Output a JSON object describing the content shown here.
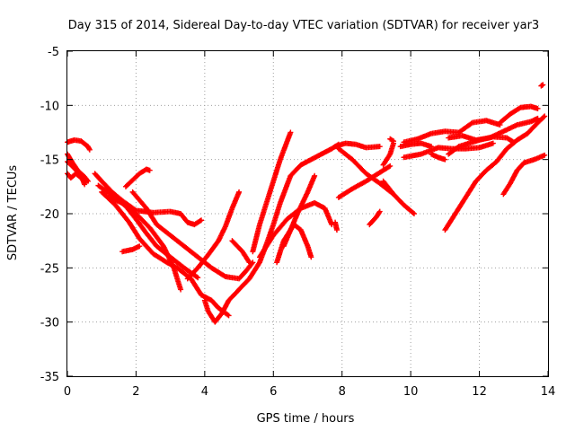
{
  "chart_data": {
    "type": "scatter",
    "title": "Day 315 of 2014, Sidereal Day-to-day VTEC variation (SDTVAR) for receiver yar3",
    "xlabel": "GPS time / hours",
    "ylabel": "SDTVAR / TECUs",
    "xlim": [
      0,
      14
    ],
    "ylim": [
      -35,
      -5
    ],
    "xticks": [
      "0",
      "2",
      "4",
      "6",
      "8",
      "10",
      "12",
      "14"
    ],
    "yticks": [
      "-5",
      "-10",
      "-15",
      "-20",
      "-25",
      "-30",
      "-35"
    ],
    "grid": true,
    "legend": "none",
    "marker": "plus",
    "color": "#ff0000",
    "series": [
      {
        "points": [
          [
            0.0,
            -13.4
          ],
          [
            0.2,
            -13.2
          ],
          [
            0.4,
            -13.3
          ],
          [
            0.6,
            -13.8
          ],
          [
            0.65,
            -14.1
          ]
        ]
      },
      {
        "points": [
          [
            0.0,
            -14.5
          ],
          [
            0.15,
            -15.3
          ],
          [
            0.3,
            -16.0
          ],
          [
            0.5,
            -16.6
          ],
          [
            0.6,
            -17.0
          ]
        ]
      },
      {
        "points": [
          [
            0.0,
            -16.3
          ],
          [
            0.1,
            -16.7
          ],
          [
            0.25,
            -16.3
          ],
          [
            0.4,
            -16.7
          ],
          [
            0.55,
            -17.1
          ]
        ]
      },
      {
        "points": [
          [
            0.0,
            -15.2
          ],
          [
            0.2,
            -15.8
          ],
          [
            0.4,
            -16.5
          ],
          [
            0.5,
            -17.3
          ]
        ]
      },
      {
        "points": [
          [
            0.8,
            -16.3
          ],
          [
            1.0,
            -17.0
          ],
          [
            1.3,
            -18.0
          ],
          [
            1.6,
            -18.8
          ],
          [
            2.0,
            -19.7
          ],
          [
            2.5,
            -19.9
          ],
          [
            3.0,
            -19.8
          ],
          [
            3.3,
            -20.0
          ],
          [
            3.5,
            -20.8
          ],
          [
            3.7,
            -21.0
          ],
          [
            3.9,
            -20.6
          ]
        ]
      },
      {
        "points": [
          [
            0.9,
            -17.4
          ],
          [
            1.3,
            -18.3
          ],
          [
            1.7,
            -19.3
          ],
          [
            2.0,
            -20.5
          ],
          [
            2.3,
            -21.8
          ],
          [
            2.6,
            -23.0
          ],
          [
            3.0,
            -24.0
          ],
          [
            3.4,
            -25.0
          ],
          [
            3.8,
            -25.9
          ]
        ]
      },
      {
        "points": [
          [
            1.0,
            -18.0
          ],
          [
            1.4,
            -19.2
          ],
          [
            1.8,
            -20.8
          ],
          [
            2.1,
            -22.3
          ],
          [
            2.5,
            -23.7
          ],
          [
            2.9,
            -24.5
          ],
          [
            3.2,
            -25.0
          ],
          [
            3.6,
            -26.0
          ],
          [
            3.9,
            -27.5
          ],
          [
            4.2,
            -28.0
          ],
          [
            4.4,
            -28.7
          ],
          [
            4.7,
            -29.4
          ]
        ]
      },
      {
        "points": [
          [
            1.2,
            -18.5
          ],
          [
            1.6,
            -19.0
          ],
          [
            2.0,
            -20.0
          ],
          [
            2.4,
            -21.3
          ],
          [
            2.8,
            -23.0
          ],
          [
            3.1,
            -25.0
          ],
          [
            3.3,
            -27.0
          ]
        ]
      },
      {
        "points": [
          [
            1.7,
            -17.5
          ],
          [
            2.1,
            -16.3
          ],
          [
            2.3,
            -15.9
          ],
          [
            2.4,
            -16.0
          ]
        ]
      },
      {
        "points": [
          [
            1.6,
            -23.5
          ],
          [
            1.9,
            -23.3
          ],
          [
            2.1,
            -23.0
          ]
        ]
      },
      {
        "points": [
          [
            1.9,
            -18.0
          ],
          [
            2.3,
            -19.5
          ],
          [
            2.6,
            -21.0
          ],
          [
            3.0,
            -22.0
          ],
          [
            3.4,
            -23.0
          ],
          [
            3.8,
            -24.0
          ],
          [
            4.2,
            -25.0
          ],
          [
            4.6,
            -25.8
          ],
          [
            5.0,
            -26.0
          ],
          [
            5.2,
            -25.3
          ],
          [
            5.4,
            -24.5
          ]
        ]
      },
      {
        "points": [
          [
            3.5,
            -26.0
          ],
          [
            3.8,
            -25.0
          ],
          [
            4.1,
            -23.8
          ],
          [
            4.4,
            -22.5
          ],
          [
            4.6,
            -21.2
          ],
          [
            4.8,
            -19.5
          ],
          [
            5.0,
            -18.0
          ]
        ]
      },
      {
        "points": [
          [
            4.0,
            -28.0
          ],
          [
            4.1,
            -29.0
          ],
          [
            4.3,
            -30.0
          ],
          [
            4.5,
            -29.2
          ],
          [
            4.7,
            -28.0
          ],
          [
            5.0,
            -27.0
          ],
          [
            5.3,
            -26.0
          ],
          [
            5.6,
            -24.5
          ],
          [
            5.8,
            -22.8
          ],
          [
            6.0,
            -21.0
          ],
          [
            6.2,
            -19.0
          ],
          [
            6.5,
            -16.5
          ],
          [
            6.8,
            -15.5
          ],
          [
            7.1,
            -15.0
          ],
          [
            7.4,
            -14.5
          ],
          [
            7.7,
            -14.0
          ],
          [
            7.9,
            -13.6
          ]
        ]
      },
      {
        "points": [
          [
            4.8,
            -22.5
          ],
          [
            5.1,
            -23.5
          ],
          [
            5.3,
            -24.5
          ]
        ]
      },
      {
        "points": [
          [
            5.4,
            -23.5
          ],
          [
            5.6,
            -21.0
          ],
          [
            5.9,
            -18.0
          ],
          [
            6.2,
            -15.0
          ],
          [
            6.5,
            -12.5
          ]
        ]
      },
      {
        "points": [
          [
            5.6,
            -24.0
          ],
          [
            6.0,
            -22.0
          ],
          [
            6.4,
            -20.5
          ],
          [
            6.8,
            -19.5
          ],
          [
            7.2,
            -19.0
          ],
          [
            7.5,
            -19.5
          ],
          [
            7.7,
            -21.0
          ]
        ]
      },
      {
        "points": [
          [
            6.1,
            -24.5
          ],
          [
            6.3,
            -22.5
          ],
          [
            6.6,
            -21.0
          ],
          [
            6.8,
            -21.5
          ],
          [
            7.0,
            -23.0
          ],
          [
            7.1,
            -24.0
          ]
        ]
      },
      {
        "points": [
          [
            6.3,
            -23.0
          ],
          [
            6.5,
            -21.5
          ],
          [
            6.7,
            -20.0
          ],
          [
            7.0,
            -18.0
          ],
          [
            7.2,
            -16.5
          ]
        ]
      },
      {
        "points": [
          [
            7.8,
            -20.8
          ],
          [
            7.85,
            -21.5
          ]
        ]
      },
      {
        "points": [
          [
            7.8,
            -13.8
          ],
          [
            8.1,
            -13.5
          ],
          [
            8.4,
            -13.6
          ],
          [
            8.7,
            -13.9
          ],
          [
            9.1,
            -13.8
          ]
        ]
      },
      {
        "points": [
          [
            7.9,
            -18.5
          ],
          [
            8.3,
            -17.7
          ],
          [
            8.7,
            -17.0
          ],
          [
            9.1,
            -16.2
          ],
          [
            9.4,
            -15.6
          ]
        ]
      },
      {
        "points": [
          [
            7.9,
            -14.0
          ],
          [
            8.3,
            -15.0
          ],
          [
            8.7,
            -16.3
          ],
          [
            9.1,
            -17.2
          ],
          [
            9.5,
            -18.2
          ],
          [
            9.8,
            -19.2
          ],
          [
            10.1,
            -20.0
          ]
        ]
      },
      {
        "points": [
          [
            8.8,
            -21.0
          ],
          [
            9.0,
            -20.3
          ],
          [
            9.1,
            -19.8
          ]
        ]
      },
      {
        "points": [
          [
            9.2,
            -17.0
          ],
          [
            9.4,
            -17.8
          ],
          [
            9.5,
            -18.2
          ]
        ]
      },
      {
        "points": [
          [
            9.2,
            -15.5
          ],
          [
            9.4,
            -14.5
          ],
          [
            9.5,
            -13.5
          ]
        ]
      },
      {
        "points": [
          [
            9.4,
            -13.1
          ],
          [
            9.5,
            -13.3
          ]
        ]
      },
      {
        "points": [
          [
            9.7,
            -13.8
          ],
          [
            10.0,
            -13.6
          ],
          [
            10.3,
            -13.5
          ],
          [
            10.6,
            -13.8
          ]
        ]
      },
      {
        "points": [
          [
            9.8,
            -14.8
          ],
          [
            10.3,
            -14.5
          ],
          [
            10.8,
            -13.9
          ],
          [
            11.2,
            -14.0
          ],
          [
            11.6,
            -14.0
          ],
          [
            12.0,
            -13.9
          ],
          [
            12.4,
            -13.5
          ]
        ]
      },
      {
        "points": [
          [
            9.8,
            -13.4
          ],
          [
            10.2,
            -13.1
          ],
          [
            10.6,
            -12.6
          ],
          [
            11.0,
            -12.4
          ],
          [
            11.4,
            -12.5
          ],
          [
            11.8,
            -11.6
          ],
          [
            12.2,
            -11.4
          ],
          [
            12.6,
            -11.8
          ]
        ]
      },
      {
        "points": [
          [
            10.6,
            -14.5
          ],
          [
            10.8,
            -14.8
          ],
          [
            11.0,
            -15.0
          ]
        ]
      },
      {
        "points": [
          [
            11.0,
            -21.5
          ],
          [
            11.3,
            -20.0
          ],
          [
            11.6,
            -18.5
          ],
          [
            11.9,
            -17.0
          ],
          [
            12.2,
            -16.0
          ],
          [
            12.5,
            -15.2
          ],
          [
            12.8,
            -14.0
          ],
          [
            13.1,
            -13.2
          ],
          [
            13.4,
            -12.6
          ],
          [
            13.7,
            -11.6
          ],
          [
            13.9,
            -11.0
          ]
        ]
      },
      {
        "points": [
          [
            11.1,
            -14.5
          ],
          [
            11.4,
            -13.8
          ],
          [
            11.7,
            -13.5
          ],
          [
            12.0,
            -13.2
          ],
          [
            12.4,
            -12.9
          ],
          [
            12.8,
            -13.0
          ],
          [
            13.0,
            -13.4
          ]
        ]
      },
      {
        "points": [
          [
            11.1,
            -13.0
          ],
          [
            11.5,
            -12.8
          ],
          [
            11.9,
            -13.2
          ],
          [
            12.3,
            -13.0
          ],
          [
            12.7,
            -12.4
          ],
          [
            13.1,
            -11.8
          ],
          [
            13.5,
            -11.5
          ],
          [
            13.7,
            -11.2
          ]
        ]
      },
      {
        "points": [
          [
            12.6,
            -11.6
          ],
          [
            12.9,
            -10.8
          ],
          [
            13.2,
            -10.2
          ],
          [
            13.5,
            -10.1
          ],
          [
            13.7,
            -10.3
          ]
        ]
      },
      {
        "points": [
          [
            12.7,
            -18.2
          ],
          [
            12.9,
            -17.2
          ],
          [
            13.1,
            -16.0
          ],
          [
            13.3,
            -15.3
          ],
          [
            13.6,
            -15.0
          ],
          [
            13.9,
            -14.6
          ]
        ]
      },
      {
        "points": [
          [
            13.8,
            -8.2
          ],
          [
            13.85,
            -8.1
          ]
        ]
      }
    ]
  }
}
